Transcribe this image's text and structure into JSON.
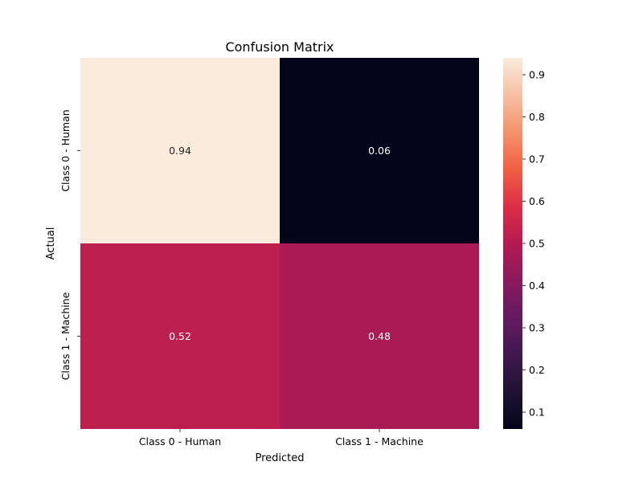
{
  "chart_data": {
    "type": "heatmap",
    "title": "Confusion Matrix",
    "xlabel": "Predicted",
    "ylabel": "Actual",
    "x_categories": [
      "Class 0 - Human",
      "Class 1 - Machine"
    ],
    "y_categories": [
      "Class 0 - Human",
      "Class 1 - Machine"
    ],
    "values": [
      [
        0.94,
        0.06
      ],
      [
        0.52,
        0.48
      ]
    ],
    "annotations": [
      [
        "0.94",
        "0.06"
      ],
      [
        "0.52",
        "0.48"
      ]
    ],
    "colorbar": {
      "range": [
        0.06,
        0.94
      ],
      "ticks": [
        0.1,
        0.2,
        0.3,
        0.4,
        0.5,
        0.6,
        0.7,
        0.8,
        0.9
      ],
      "tick_labels": [
        "0.1",
        "0.2",
        "0.3",
        "0.4",
        "0.5",
        "0.6",
        "0.7",
        "0.8",
        "0.9"
      ],
      "colormap": "rocket"
    },
    "grid": false
  }
}
